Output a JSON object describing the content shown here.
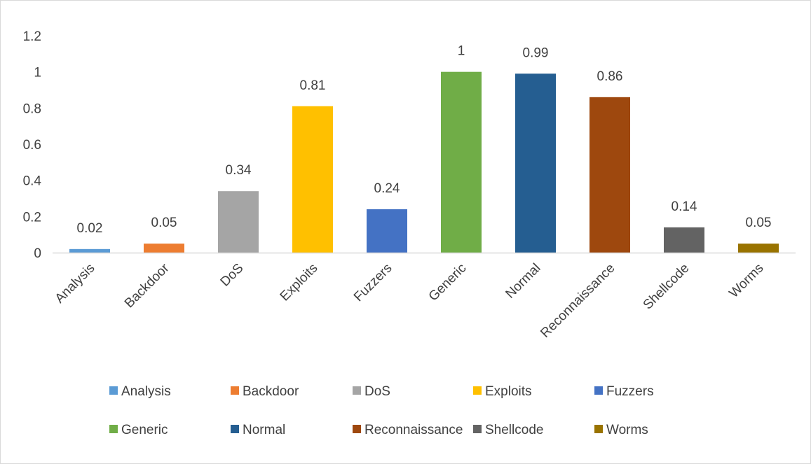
{
  "chart_data": {
    "type": "bar",
    "title": "",
    "xlabel": "",
    "ylabel": "",
    "ylim": [
      0,
      1.2
    ],
    "yticks": [
      "0",
      "0.2",
      "0.4",
      "0.6",
      "0.8",
      "1",
      "1.2"
    ],
    "ytick_values": [
      0,
      0.2,
      0.4,
      0.6,
      0.8,
      1,
      1.2
    ],
    "grid": false,
    "legend_position": "bottom",
    "categories": [
      "Analysis",
      "Backdoor",
      "DoS",
      "Exploits",
      "Fuzzers",
      "Generic",
      "Normal",
      "Reconnaissance",
      "Shellcode",
      "Worms"
    ],
    "values": [
      0.02,
      0.05,
      0.34,
      0.81,
      0.24,
      1,
      0.99,
      0.86,
      0.14,
      0.05
    ],
    "data_labels": [
      "0.02",
      "0.05",
      "0.34",
      "0.81",
      "0.24",
      "1",
      "0.99",
      "0.86",
      "0.14",
      "0.05"
    ],
    "colors": [
      "#5b9bd5",
      "#ed7d31",
      "#a5a5a5",
      "#ffc000",
      "#4472c4",
      "#70ad47",
      "#255e91",
      "#9e480e",
      "#636363",
      "#997300"
    ],
    "axis_color": "#d9d9d9",
    "text_color": "#404040"
  }
}
